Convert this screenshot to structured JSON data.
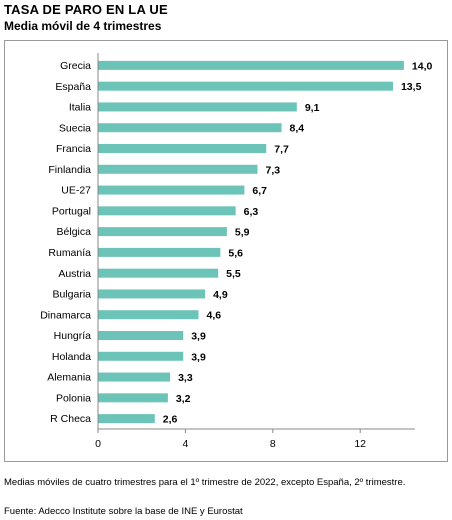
{
  "header": {
    "title": "TASA DE PARO EN LA UE",
    "subtitle": "Media móvil de 4 trimestres"
  },
  "footer": {
    "note": "Medias móviles de cuatro trimestres para el 1º trimestre de 2022, excepto España, 2º trimestre.",
    "source": "Fuente: Adecco Institute sobre la base de INE y Eurostat"
  },
  "chart_data": {
    "type": "bar",
    "orientation": "horizontal",
    "title": "TASA DE PARO EN LA UE",
    "subtitle": "Media móvil de 4 trimestres",
    "categories": [
      "Grecia",
      "España",
      "Italia",
      "Suecia",
      "Francia",
      "Finlandia",
      "UE-27",
      "Portugal",
      "Bélgica",
      "Rumanía",
      "Austria",
      "Bulgaria",
      "Dinamarca",
      "Hungría",
      "Holanda",
      "Alemania",
      "Polonia",
      "R Checa"
    ],
    "values": [
      14.0,
      13.5,
      9.1,
      8.4,
      7.7,
      7.3,
      6.7,
      6.3,
      5.9,
      5.6,
      5.5,
      4.9,
      4.6,
      3.9,
      3.9,
      3.3,
      3.2,
      2.6
    ],
    "value_labels": [
      "14,0",
      "13,5",
      "9,1",
      "8,4",
      "7,7",
      "7,3",
      "6,7",
      "6,3",
      "5,9",
      "5,6",
      "5,5",
      "4,9",
      "4,6",
      "3,9",
      "3,9",
      "3,3",
      "3,2",
      "2,6"
    ],
    "xlim": [
      0,
      16
    ],
    "xticks": [
      0,
      4,
      8,
      12
    ],
    "xtick_labels": [
      "0",
      "4",
      "8",
      "12"
    ],
    "xlabel": "",
    "ylabel": "",
    "bar_color": "#6cc4b9",
    "grid": false,
    "legend": "none"
  }
}
